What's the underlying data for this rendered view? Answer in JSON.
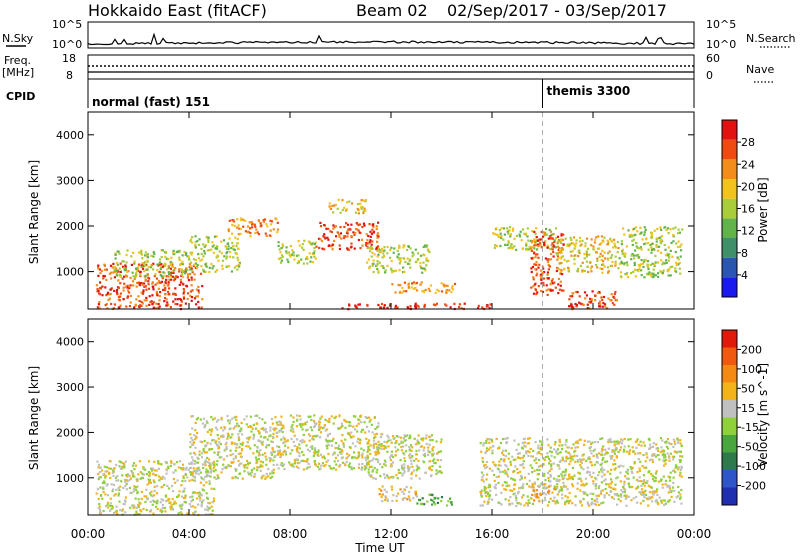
{
  "header": {
    "station": "Hokkaido East (fitACF)",
    "beam": "Beam 02",
    "dates": "02/Sep/2017 - 03/Sep/2017"
  },
  "top_panels": {
    "nsky_label": "N.Sky",
    "nsky_ticks": [
      "10^5",
      "10^0"
    ],
    "nsearch_label": "N.Search",
    "nsearch_ticks": [
      "10^5",
      "10^0"
    ],
    "freq_label": "Freq.",
    "freq_unit": "[MHz]",
    "freq_ticks": [
      "18",
      "8"
    ],
    "nave_label": "Nave",
    "nave_ticks": [
      "60",
      "0"
    ],
    "cpid_label": "CPID",
    "cpid_entries": [
      {
        "text": "normal (fast) 151",
        "start_hour": 0
      },
      {
        "text": "themis 3300",
        "start_hour": 18
      }
    ]
  },
  "axes": {
    "ylabel": "Slant Range [km]",
    "xlabel": "Time UT",
    "yticks": [
      1000,
      2000,
      3000,
      4000
    ],
    "ytick_labels": [
      "1000",
      "2000",
      "3000",
      "4000"
    ],
    "xticks": [
      0,
      4,
      8,
      12,
      16,
      20,
      24
    ],
    "xtick_labels": [
      "00:00",
      "04:00",
      "08:00",
      "12:00",
      "16:00",
      "20:00",
      "00:00"
    ]
  },
  "power_colorbar": {
    "label": "Power [dB]",
    "tick_labels": [
      "4",
      "8",
      "12",
      "16",
      "20",
      "24",
      "28"
    ],
    "colors": [
      "#1a1aee",
      "#2a55b0",
      "#3f8f6a",
      "#63b34d",
      "#a9cc3a",
      "#f2c31c",
      "#f28c1a",
      "#ee4a12",
      "#e11212"
    ]
  },
  "velocity_colorbar": {
    "label": "Velocity [m s^-1]",
    "tick_labels": [
      "200",
      "100",
      "50",
      "15",
      "-15",
      "-50",
      "-100",
      "-200"
    ],
    "colors": [
      "#1f2fb0",
      "#2f56c8",
      "#2f7a4a",
      "#49a63e",
      "#8fd13a",
      "#c0c0c0",
      "#f2b41a",
      "#f28a14",
      "#ef5a10",
      "#e01a0a"
    ]
  },
  "chart_data": [
    {
      "type": "heatmap",
      "title": "Power",
      "x": "time (hours UT)",
      "xlim": [
        0,
        24
      ],
      "ylim": [
        180,
        4500
      ],
      "regions": [
        {
          "t0": 0.3,
          "t1": 4.5,
          "r0": 200,
          "r1": 1200,
          "level": 7
        },
        {
          "t0": 1.0,
          "t1": 4.0,
          "r0": 900,
          "r1": 1500,
          "level": 4
        },
        {
          "t0": 4.0,
          "t1": 6.0,
          "r0": 1000,
          "r1": 1800,
          "level": 4
        },
        {
          "t0": 5.5,
          "t1": 7.5,
          "r0": 1800,
          "r1": 2200,
          "level": 6
        },
        {
          "t0": 7.5,
          "t1": 9.0,
          "r0": 1200,
          "r1": 1700,
          "level": 4
        },
        {
          "t0": 9.0,
          "t1": 11.5,
          "r0": 1500,
          "r1": 2100,
          "level": 7
        },
        {
          "t0": 9.5,
          "t1": 11.0,
          "r0": 2300,
          "r1": 2600,
          "level": 5
        },
        {
          "t0": 11.0,
          "t1": 13.5,
          "r0": 1000,
          "r1": 1600,
          "level": 4
        },
        {
          "t0": 12.0,
          "t1": 14.5,
          "r0": 550,
          "r1": 800,
          "level": 6
        },
        {
          "t0": 16.0,
          "t1": 18.5,
          "r0": 1500,
          "r1": 2000,
          "level": 4
        },
        {
          "t0": 17.5,
          "t1": 18.8,
          "r0": 500,
          "r1": 1900,
          "level": 7
        },
        {
          "t0": 18.5,
          "t1": 21.0,
          "r0": 1000,
          "r1": 1800,
          "level": 5
        },
        {
          "t0": 19.0,
          "t1": 21.0,
          "r0": 200,
          "r1": 600,
          "level": 7
        },
        {
          "t0": 21.0,
          "t1": 23.5,
          "r0": 900,
          "r1": 2000,
          "level": 4
        },
        {
          "t0": 10.0,
          "t1": 16.0,
          "r0": 200,
          "r1": 320,
          "level": 8
        }
      ]
    },
    {
      "type": "heatmap",
      "title": "Velocity",
      "x": "time (hours UT)",
      "xlim": [
        0,
        24
      ],
      "ylim": [
        180,
        4500
      ],
      "regions": [
        {
          "t0": 0.3,
          "t1": 5.0,
          "r0": 200,
          "r1": 1400,
          "level": 5
        },
        {
          "t0": 4.0,
          "t1": 7.5,
          "r0": 1000,
          "r1": 2400,
          "level": 5
        },
        {
          "t0": 7.5,
          "t1": 11.5,
          "r0": 1200,
          "r1": 2400,
          "level": 5
        },
        {
          "t0": 11.0,
          "t1": 14.0,
          "r0": 1000,
          "r1": 2000,
          "level": 5
        },
        {
          "t0": 11.5,
          "t1": 13.0,
          "r0": 500,
          "r1": 850,
          "level": 6
        },
        {
          "t0": 13.0,
          "t1": 14.5,
          "r0": 400,
          "r1": 650,
          "level": 3
        },
        {
          "t0": 15.5,
          "t1": 23.5,
          "r0": 400,
          "r1": 1900,
          "level": 5
        },
        {
          "t0": 17.5,
          "t1": 18.5,
          "r0": 500,
          "r1": 900,
          "level": 6
        }
      ]
    }
  ]
}
